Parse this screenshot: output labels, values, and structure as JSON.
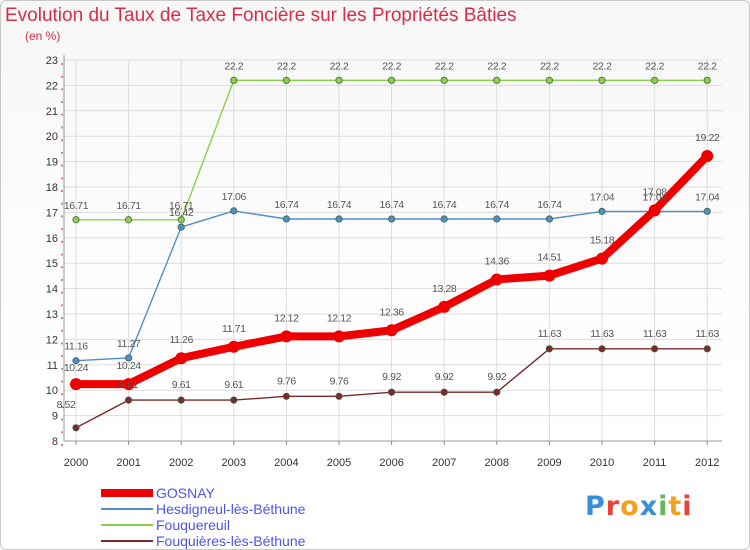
{
  "chart_data": {
    "type": "line",
    "title": "Evolution du Taux de Taxe Foncière sur les Propriétés Bâties",
    "ylabel": "(en %)",
    "xlabel": "",
    "x": [
      "2000",
      "2001",
      "2002",
      "2003",
      "2004",
      "2005",
      "2006",
      "2007",
      "2008",
      "2009",
      "2010",
      "2011",
      "2012"
    ],
    "ylim": [
      8,
      23
    ],
    "yticks": [
      "8",
      "9",
      "10",
      "11",
      "12",
      "13",
      "14",
      "15",
      "16",
      "17",
      "18",
      "19",
      "20",
      "21",
      "22",
      "23"
    ],
    "grid": true,
    "legend_position": "bottom-left",
    "series": [
      {
        "name": "GOSNAY",
        "color": "#ee0000",
        "emphasis": true,
        "values": [
          10.24,
          10.24,
          11.26,
          11.71,
          12.12,
          12.12,
          12.36,
          13.28,
          14.36,
          14.51,
          15.18,
          17.08,
          19.22
        ],
        "labels": [
          "10.24",
          "10.24",
          "11.26",
          "11.71",
          "12.12",
          "12.12",
          "12.36",
          "13.28",
          "14.36",
          "14.51",
          "15.18",
          "17.08",
          "19.22"
        ]
      },
      {
        "name": "Hesdigneul-lès-Béthune",
        "color": "#4f8ec9",
        "emphasis": false,
        "values": [
          11.16,
          11.27,
          16.42,
          17.06,
          16.74,
          16.74,
          16.74,
          16.74,
          16.74,
          16.74,
          17.04,
          17.04,
          17.04
        ],
        "labels": [
          "11.16",
          "11.27",
          "16.42",
          "17.06",
          "16.74",
          "16.74",
          "16.74",
          "16.74",
          "16.74",
          "16.74",
          "17.04",
          "17.04",
          "17.04"
        ]
      },
      {
        "name": "Fouquereuil",
        "color": "#8ccf48",
        "emphasis": false,
        "values": [
          16.71,
          16.71,
          16.71,
          22.2,
          22.2,
          22.2,
          22.2,
          22.2,
          22.2,
          22.2,
          22.2,
          22.2,
          22.2
        ],
        "labels": [
          "16.71",
          "16.71",
          "16.71",
          "22.2",
          "22.2",
          "22.2",
          "22.2",
          "22.2",
          "22.2",
          "22.2",
          "22.2",
          "22.2",
          "22.2"
        ]
      },
      {
        "name": "Fouquières-lès-Béthune",
        "color": "#7a2a2a",
        "emphasis": false,
        "values": [
          8.52,
          9.61,
          9.61,
          9.61,
          9.76,
          9.76,
          9.92,
          9.92,
          9.92,
          11.63,
          11.63,
          11.63,
          11.63
        ],
        "labels": [
          "8.52",
          "9.61",
          "9.61",
          "9.61",
          "9.76",
          "9.76",
          "9.92",
          "9.92",
          "9.92",
          "11.63",
          "11.63",
          "11.63",
          "11.63"
        ]
      }
    ]
  },
  "branding": {
    "logo_letters": [
      "P",
      "r",
      "o",
      "x",
      "i",
      "t",
      "i"
    ],
    "logo_colors": [
      "#3a8fd6",
      "#e8433a",
      "#f2a21c",
      "#3a8fd6",
      "#5fb85a",
      "#f2a21c",
      "#e8433a"
    ]
  }
}
